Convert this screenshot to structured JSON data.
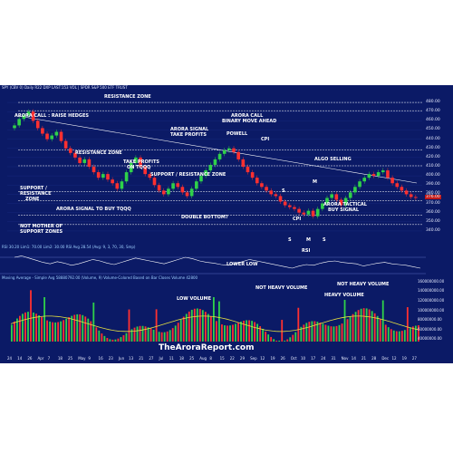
{
  "chart_data": {
    "type": "candlestick",
    "header": "SPY (CBV 0) Daily  R22  DXP LAST:153 VOL | SPDR S&P 500 ETF TRUST",
    "symbol": "SPY",
    "brand": "TheAroraReport.com",
    "price_axis": {
      "ylim": [
        335,
        485
      ],
      "ticks": [
        "480.00",
        "470.00",
        "460.00",
        "450.00",
        "440.00",
        "430.00",
        "420.00",
        "410.00",
        "400.00",
        "390.00",
        "380.00",
        "370.00",
        "360.00",
        "350.00",
        "340.00"
      ]
    },
    "last_price_label": "376.00",
    "horizontal_zones": [
      {
        "label": "RESISTANCE ZONE",
        "value": 480
      },
      {
        "label": "ARORA CALL : RAISE HEDGES",
        "value": 471
      },
      {
        "label": "RESISTANCE ZONE",
        "value": 428
      },
      {
        "label": "ALGO SELLING",
        "value": 411
      },
      {
        "label": "SUPPORT / RESISTANCE ZONE",
        "value": 383
      },
      {
        "label": "SUPPORT / RESISTANCE ZONE",
        "value": 373
      },
      {
        "label": "ARORA SIGNAL TO BUY TQQQ",
        "value": 357
      },
      {
        "label": "NOT MOTHER OF SUPPORT ZONES",
        "value": 347
      }
    ],
    "annotations": [
      "RESISTANCE ZONE",
      "ARORA CALL : RAISE HEDGES",
      "ARORA SIGNAL",
      "TAKE PROFITS",
      "ARORA CALL",
      "BINARY MOVE AHEAD",
      "POWELL",
      "CPI",
      "RESISTANCE ZONE",
      "TAKE PROFITS",
      "ON TQQQ",
      "SUPPORT / RESISTANCE ZONE",
      "ALGO SELLING",
      "SUPPORT /",
      "RESISTANCE",
      "ZONE",
      "M",
      "S",
      "ARORA SIGNAL TO BUY TQQQ",
      "DOUBLE BOTTOM?",
      "CPI",
      "ARORA TACTICAL",
      "BUY SIGNAL",
      "NOT MOTHER OF",
      "SUPPORT ZONES",
      "S",
      "M",
      "S",
      "RSI",
      "LOWER LOW",
      "LOW VOLUME",
      "NOT HEAVY VOLUME",
      "HEAVY VOLUME",
      "NOT HEAVY VOLUME"
    ],
    "close_series": [
      455,
      462,
      466,
      470,
      460,
      452,
      446,
      440,
      444,
      448,
      438,
      430,
      425,
      420,
      414,
      418,
      410,
      404,
      398,
      402,
      396,
      392,
      386,
      394,
      404,
      414,
      420,
      410,
      402,
      398,
      390,
      384,
      380,
      386,
      392,
      388,
      382,
      378,
      386,
      394,
      400,
      406,
      412,
      418,
      424,
      428,
      430,
      426,
      418,
      410,
      404,
      398,
      392,
      388,
      384,
      380,
      378,
      372,
      368,
      366,
      364,
      360,
      358,
      362,
      356,
      364,
      370,
      376,
      380,
      374,
      368,
      376,
      382,
      388,
      394,
      398,
      402,
      400,
      404,
      406,
      398,
      392,
      388,
      384,
      380,
      377,
      376
    ],
    "rsi_panel": {
      "header": "RSI  30.20  Lim1: 70.00  Lim2: 30.00  RSI Avg  28.54  (Avg: 9, 3, 70, 30, Smp)",
      "values": [
        60,
        64,
        58,
        52,
        46,
        42,
        48,
        44,
        38,
        42,
        48,
        54,
        50,
        44,
        40,
        46,
        52,
        58,
        54,
        50,
        46,
        42,
        48,
        54,
        60,
        56,
        50,
        46,
        44,
        40,
        38,
        42,
        48,
        54,
        50,
        46,
        42,
        38,
        34,
        30,
        36,
        40,
        38,
        44,
        48,
        50,
        46,
        44,
        42,
        36,
        40,
        44,
        46,
        42,
        40,
        38,
        34,
        30
      ]
    },
    "volume_panel": {
      "header": "Moving Average - Simple  Avg  58880792.00   (Volume, 9) Volume-Colored Based on Bar Closes  Volume  42800",
      "ticks": [
        "160000000.00",
        "140000000.00",
        "120000000.00",
        "100000000.00",
        "80000000.00",
        "60000000.00",
        "40000000.00"
      ],
      "ylim": [
        35000000,
        165000000
      ]
    },
    "x_ticks": [
      "24",
      "14",
      "26",
      "Apr",
      "7",
      "18",
      "25",
      "May",
      "9",
      "16",
      "23",
      "Jun",
      "13",
      "21",
      "27",
      "Jul",
      "11",
      "18",
      "25",
      "Aug",
      "8",
      "15",
      "22",
      "29",
      "Sep",
      "12",
      "19",
      "26",
      "Oct",
      "10",
      "17",
      "24",
      "31",
      "Nov",
      "14",
      "21",
      "28",
      "Dec",
      "12",
      "19",
      "27"
    ]
  }
}
